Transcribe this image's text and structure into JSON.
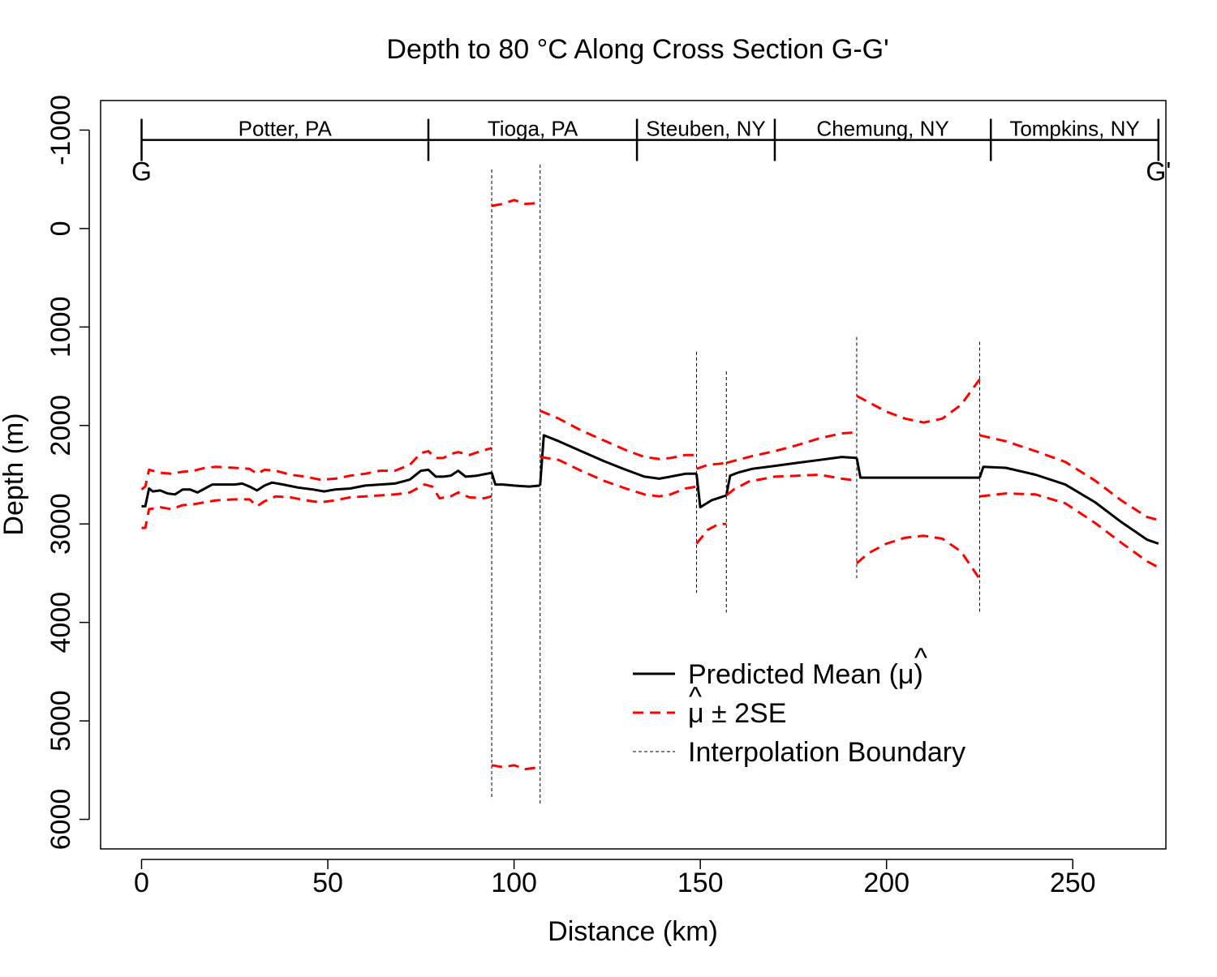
{
  "chart_data": {
    "type": "line",
    "title": "Depth to 80 °C Along Cross Section G-G'",
    "xlabel": "Distance (km)",
    "ylabel": "Depth (m)",
    "xlim": [
      -11,
      275
    ],
    "ylim": [
      6300,
      -1300
    ],
    "y_reversed": true,
    "x_ticks": [
      "0",
      "50",
      "100",
      "150",
      "200",
      "250"
    ],
    "x_tick_values": [
      0,
      50,
      100,
      150,
      200,
      250
    ],
    "y_ticks": [
      "-1000",
      "0",
      "1000",
      "2000",
      "3000",
      "4000",
      "5000",
      "6000"
    ],
    "y_tick_values": [
      -1000,
      0,
      1000,
      2000,
      3000,
      4000,
      5000,
      6000
    ],
    "grid": false,
    "legend_position": "bottom-right",
    "legend": {
      "mean": "Predicted Mean (",
      "mean_symbol": "μ",
      "mean_close": ")",
      "band_symbol": "μ",
      "band_rest": "± 2SE",
      "boundary": "Interpolation Boundary"
    },
    "section_bar": {
      "depth": -900,
      "start_label": "G",
      "end_label": "G'",
      "dividers": [
        0,
        77,
        133,
        170,
        228,
        273
      ],
      "counties": [
        {
          "name": "Potter, PA",
          "x": 38.5
        },
        {
          "name": "Tioga, PA",
          "x": 105
        },
        {
          "name": "Steuben, NY",
          "x": 151.5
        },
        {
          "name": "Chemung, NY",
          "x": 199
        },
        {
          "name": "Tompkins, NY",
          "x": 250.5
        }
      ]
    },
    "interpolation_boundaries": [
      {
        "x": 94,
        "y1": -600,
        "y2": 5800
      },
      {
        "x": 107,
        "y1": -650,
        "y2": 5850
      },
      {
        "x": 149,
        "y1": 1250,
        "y2": 3700
      },
      {
        "x": 157,
        "y1": 1450,
        "y2": 3900
      },
      {
        "x": 192,
        "y1": 1100,
        "y2": 3550
      },
      {
        "x": 225,
        "y1": 1150,
        "y2": 3900
      }
    ],
    "series": [
      {
        "name": "Predicted Mean",
        "style": "solid",
        "color": "#000000",
        "segments": [
          [
            [
              0,
              2820
            ],
            [
              1,
              2820
            ],
            [
              2,
              2640
            ],
            [
              3,
              2670
            ],
            [
              5,
              2660
            ],
            [
              7,
              2690
            ],
            [
              9,
              2700
            ],
            [
              11,
              2650
            ],
            [
              13,
              2650
            ],
            [
              15,
              2680
            ],
            [
              17,
              2640
            ],
            [
              19,
              2600
            ],
            [
              22,
              2600
            ],
            [
              25,
              2600
            ],
            [
              27,
              2590
            ],
            [
              29,
              2620
            ],
            [
              31,
              2660
            ],
            [
              33,
              2610
            ],
            [
              35,
              2580
            ],
            [
              38,
              2600
            ],
            [
              42,
              2630
            ],
            [
              46,
              2650
            ],
            [
              49,
              2670
            ],
            [
              52,
              2650
            ],
            [
              56,
              2640
            ],
            [
              60,
              2610
            ],
            [
              64,
              2600
            ],
            [
              68,
              2590
            ],
            [
              72,
              2550
            ],
            [
              75,
              2460
            ],
            [
              77,
              2450
            ],
            [
              79,
              2520
            ],
            [
              81,
              2520
            ],
            [
              83,
              2510
            ],
            [
              85,
              2460
            ],
            [
              87,
              2520
            ],
            [
              90,
              2510
            ],
            [
              94,
              2480
            ],
            [
              95,
              2600
            ],
            [
              97,
              2600
            ],
            [
              100,
              2610
            ],
            [
              104,
              2620
            ],
            [
              107,
              2610
            ]
          ],
          [
            [
              107,
              2610
            ],
            [
              108,
              2100
            ],
            [
              112,
              2160
            ],
            [
              118,
              2260
            ],
            [
              124,
              2360
            ],
            [
              130,
              2450
            ],
            [
              135,
              2520
            ],
            [
              139,
              2540
            ],
            [
              142,
              2520
            ],
            [
              146,
              2490
            ],
            [
              149,
              2490
            ]
          ],
          [
            [
              149,
              2490
            ],
            [
              150,
              2830
            ],
            [
              153,
              2760
            ],
            [
              157,
              2710
            ]
          ],
          [
            [
              157,
              2710
            ],
            [
              158,
              2510
            ],
            [
              160,
              2480
            ],
            [
              164,
              2440
            ],
            [
              170,
              2410
            ],
            [
              176,
              2380
            ],
            [
              182,
              2350
            ],
            [
              188,
              2320
            ],
            [
              192,
              2330
            ]
          ],
          [
            [
              192,
              2330
            ],
            [
              193,
              2530
            ],
            [
              200,
              2530
            ],
            [
              210,
              2530
            ],
            [
              220,
              2530
            ],
            [
              225,
              2530
            ]
          ],
          [
            [
              225,
              2530
            ],
            [
              226,
              2420
            ],
            [
              232,
              2430
            ],
            [
              240,
              2500
            ],
            [
              248,
              2600
            ],
            [
              256,
              2780
            ],
            [
              263,
              2980
            ],
            [
              270,
              3160
            ],
            [
              273,
              3200
            ]
          ]
        ]
      },
      {
        "name": "μ ± 2SE (upper)",
        "style": "dashed",
        "color": "#ff0000",
        "segments": [
          [
            [
              0,
              3040
            ],
            [
              1,
              3040
            ],
            [
              2,
              2850
            ],
            [
              5,
              2830
            ],
            [
              8,
              2850
            ],
            [
              11,
              2810
            ],
            [
              14,
              2800
            ],
            [
              17,
              2780
            ],
            [
              20,
              2760
            ],
            [
              25,
              2750
            ],
            [
              29,
              2750
            ],
            [
              31,
              2820
            ],
            [
              33,
              2770
            ],
            [
              36,
              2720
            ],
            [
              40,
              2730
            ],
            [
              44,
              2760
            ],
            [
              48,
              2780
            ],
            [
              52,
              2760
            ],
            [
              56,
              2730
            ],
            [
              60,
              2720
            ],
            [
              64,
              2710
            ],
            [
              68,
              2700
            ],
            [
              72,
              2680
            ],
            [
              76,
              2600
            ],
            [
              78,
              2620
            ],
            [
              80,
              2740
            ],
            [
              83,
              2720
            ],
            [
              85,
              2680
            ],
            [
              88,
              2730
            ],
            [
              92,
              2740
            ],
            [
              94,
              2720
            ]
          ],
          [
            [
              94,
              5450
            ],
            [
              97,
              5470
            ],
            [
              100,
              5450
            ],
            [
              103,
              5490
            ],
            [
              107,
              5470
            ]
          ],
          [
            [
              107,
              2320
            ],
            [
              112,
              2350
            ],
            [
              118,
              2460
            ],
            [
              124,
              2560
            ],
            [
              130,
              2640
            ],
            [
              135,
              2700
            ],
            [
              139,
              2720
            ],
            [
              142,
              2700
            ],
            [
              146,
              2640
            ],
            [
              149,
              2620
            ]
          ],
          [
            [
              149,
              3200
            ],
            [
              152,
              3060
            ],
            [
              155,
              3000
            ],
            [
              157,
              3000
            ]
          ],
          [
            [
              157,
              2710
            ],
            [
              159,
              2650
            ],
            [
              163,
              2570
            ],
            [
              170,
              2520
            ],
            [
              176,
              2510
            ],
            [
              182,
              2500
            ],
            [
              188,
              2540
            ],
            [
              192,
              2560
            ]
          ],
          [
            [
              192,
              3400
            ],
            [
              195,
              3300
            ],
            [
              200,
              3200
            ],
            [
              205,
              3140
            ],
            [
              210,
              3120
            ],
            [
              215,
              3150
            ],
            [
              220,
              3280
            ],
            [
              225,
              3560
            ]
          ],
          [
            [
              225,
              2720
            ],
            [
              232,
              2690
            ],
            [
              240,
              2700
            ],
            [
              248,
              2790
            ],
            [
              256,
              2990
            ],
            [
              263,
              3190
            ],
            [
              270,
              3380
            ],
            [
              273,
              3440
            ]
          ]
        ]
      },
      {
        "name": "μ ± 2SE (lower)",
        "style": "dashed",
        "color": "#ff0000",
        "segments": [
          [
            [
              0,
              2650
            ],
            [
              1,
              2620
            ],
            [
              2,
              2450
            ],
            [
              5,
              2480
            ],
            [
              8,
              2490
            ],
            [
              11,
              2470
            ],
            [
              14,
              2460
            ],
            [
              17,
              2430
            ],
            [
              20,
              2420
            ],
            [
              25,
              2430
            ],
            [
              29,
              2440
            ],
            [
              31,
              2490
            ],
            [
              33,
              2450
            ],
            [
              36,
              2460
            ],
            [
              40,
              2500
            ],
            [
              44,
              2520
            ],
            [
              48,
              2550
            ],
            [
              52,
              2540
            ],
            [
              56,
              2510
            ],
            [
              60,
              2490
            ],
            [
              64,
              2460
            ],
            [
              68,
              2460
            ],
            [
              72,
              2400
            ],
            [
              75,
              2280
            ],
            [
              77,
              2260
            ],
            [
              79,
              2330
            ],
            [
              81,
              2330
            ],
            [
              83,
              2290
            ],
            [
              85,
              2270
            ],
            [
              88,
              2300
            ],
            [
              92,
              2250
            ],
            [
              94,
              2230
            ]
          ],
          [
            [
              94,
              -230
            ],
            [
              97,
              -250
            ],
            [
              100,
              -290
            ],
            [
              103,
              -250
            ],
            [
              107,
              -260
            ]
          ],
          [
            [
              107,
              1850
            ],
            [
              112,
              1930
            ],
            [
              118,
              2050
            ],
            [
              124,
              2150
            ],
            [
              130,
              2250
            ],
            [
              135,
              2320
            ],
            [
              139,
              2340
            ],
            [
              142,
              2330
            ],
            [
              146,
              2300
            ],
            [
              149,
              2300
            ]
          ],
          [
            [
              149,
              2440
            ],
            [
              152,
              2400
            ],
            [
              155,
              2390
            ],
            [
              157,
              2380
            ]
          ],
          [
            [
              157,
              2380
            ],
            [
              160,
              2350
            ],
            [
              164,
              2310
            ],
            [
              170,
              2260
            ],
            [
              176,
              2200
            ],
            [
              182,
              2130
            ],
            [
              188,
              2080
            ],
            [
              192,
              2070
            ]
          ],
          [
            [
              192,
              1700
            ],
            [
              195,
              1760
            ],
            [
              200,
              1860
            ],
            [
              205,
              1930
            ],
            [
              210,
              1970
            ],
            [
              215,
              1930
            ],
            [
              220,
              1790
            ],
            [
              225,
              1530
            ]
          ],
          [
            [
              225,
              2100
            ],
            [
              232,
              2160
            ],
            [
              240,
              2260
            ],
            [
              248,
              2370
            ],
            [
              256,
              2560
            ],
            [
              263,
              2760
            ],
            [
              270,
              2930
            ],
            [
              273,
              2960
            ]
          ]
        ]
      }
    ]
  }
}
